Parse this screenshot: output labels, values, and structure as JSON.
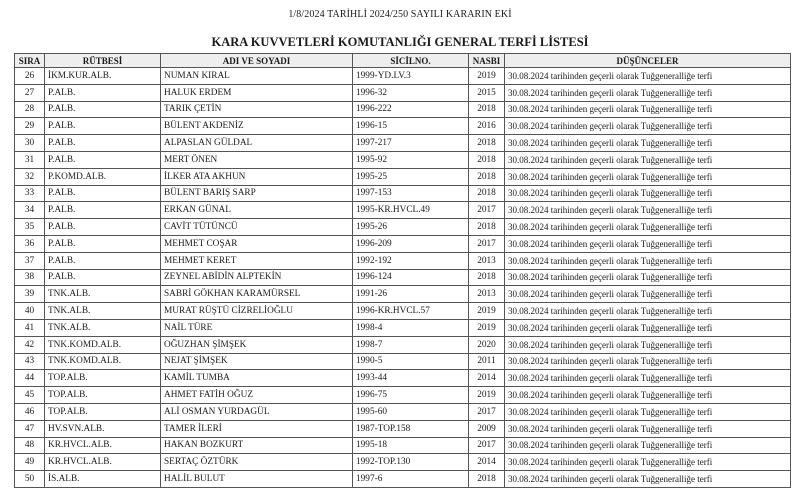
{
  "header": {
    "subtitle": "1/8/2024 TARİHLİ 2024/250 SAYILI KARARIN EKİ",
    "title": "KARA KUVVETLERİ KOMUTANLIĞI GENERAL TERFİ LİSTESİ"
  },
  "table": {
    "columns": [
      "SIRA",
      "RÜTBESİ",
      "ADI VE SOYADI",
      "SİCİLNO.",
      "NASBI",
      "DÜŞÜNCELER"
    ],
    "rows": [
      [
        "26",
        "İKM.KUR.ALB.",
        "NUMAN KIRAL",
        "1999-YD.LV.3",
        "2019",
        "30.08.2024 tarihinden geçerli olarak Tuğgeneralliğe terfi"
      ],
      [
        "27",
        "P.ALB.",
        "HALUK ERDEM",
        "1996-32",
        "2015",
        "30.08.2024 tarihinden geçerli olarak Tuğgeneralliğe terfi"
      ],
      [
        "28",
        "P.ALB.",
        "TARIK ÇETİN",
        "1996-222",
        "2018",
        "30.08.2024 tarihinden geçerli olarak Tuğgeneralliğe terfi"
      ],
      [
        "29",
        "P.ALB.",
        "BÜLENT AKDENİZ",
        "1996-15",
        "2016",
        "30.08.2024 tarihinden geçerli olarak Tuğgeneralliğe terfi"
      ],
      [
        "30",
        "P.ALB.",
        "ALPASLAN GÜLDAL",
        "1997-217",
        "2018",
        "30.08.2024 tarihinden geçerli olarak Tuğgeneralliğe terfi"
      ],
      [
        "31",
        "P.ALB.",
        "MERT ÖNEN",
        "1995-92",
        "2018",
        "30.08.2024 tarihinden geçerli olarak Tuğgeneralliğe terfi"
      ],
      [
        "32",
        "P.KOMD.ALB.",
        "İLKER ATA AKHUN",
        "1995-25",
        "2018",
        "30.08.2024 tarihinden geçerli olarak Tuğgeneralliğe terfi"
      ],
      [
        "33",
        "P.ALB.",
        "BÜLENT BARIŞ SARP",
        "1997-153",
        "2018",
        "30.08.2024 tarihinden geçerli olarak Tuğgeneralliğe terfi"
      ],
      [
        "34",
        "P.ALB.",
        "ERKAN GÜNAL",
        "1995-KR.HVCL.49",
        "2017",
        "30.08.2024 tarihinden geçerli olarak Tuğgeneralliğe terfi"
      ],
      [
        "35",
        "P.ALB.",
        "CAVİT TÜTÜNCÜ",
        "1995-26",
        "2018",
        "30.08.2024 tarihinden geçerli olarak Tuğgeneralliğe terfi"
      ],
      [
        "36",
        "P.ALB.",
        "MEHMET COŞAR",
        "1996-209",
        "2017",
        "30.08.2024 tarihinden geçerli olarak Tuğgeneralliğe terfi"
      ],
      [
        "37",
        "P.ALB.",
        "MEHMET KERET",
        "1992-192",
        "2013",
        "30.08.2024 tarihinden geçerli olarak Tuğgeneralliğe terfi"
      ],
      [
        "38",
        "P.ALB.",
        "ZEYNEL ABİDİN ALPTEKİN",
        "1996-124",
        "2018",
        "30.08.2024 tarihinden geçerli olarak Tuğgeneralliğe terfi"
      ],
      [
        "39",
        "TNK.ALB.",
        "SABRİ GÖKHAN KARAMÜRSEL",
        "1991-26",
        "2013",
        "30.08.2024 tarihinden geçerli olarak Tuğgeneralliğe terfi"
      ],
      [
        "40",
        "TNK.ALB.",
        "MURAT RÜŞTÜ CİZRELİOĞLU",
        "1996-KR.HVCL.57",
        "2019",
        "30.08.2024 tarihinden geçerli olarak Tuğgeneralliğe terfi"
      ],
      [
        "41",
        "TNK.ALB.",
        "NAİL TÜRE",
        "1998-4",
        "2019",
        "30.08.2024 tarihinden geçerli olarak Tuğgeneralliğe terfi"
      ],
      [
        "42",
        "TNK.KOMD.ALB.",
        "OĞUZHAN ŞİMŞEK",
        "1998-7",
        "2020",
        "30.08.2024 tarihinden geçerli olarak Tuğgeneralliğe terfi"
      ],
      [
        "43",
        "TNK.KOMD.ALB.",
        "NEJAT ŞİMŞEK",
        "1990-5",
        "2011",
        "30.08.2024 tarihinden geçerli olarak Tuğgeneralliğe terfi"
      ],
      [
        "44",
        "TOP.ALB.",
        "KAMİL TUMBA",
        "1993-44",
        "2014",
        "30.08.2024 tarihinden geçerli olarak Tuğgeneralliğe terfi"
      ],
      [
        "45",
        "TOP.ALB.",
        "AHMET FATİH OĞUZ",
        "1996-75",
        "2019",
        "30.08.2024 tarihinden geçerli olarak Tuğgeneralliğe terfi"
      ],
      [
        "46",
        "TOP.ALB.",
        "ALİ OSMAN YURDAGÜL",
        "1995-60",
        "2017",
        "30.08.2024 tarihinden geçerli olarak Tuğgeneralliğe terfi"
      ],
      [
        "47",
        "HV.SVN.ALB.",
        "TAMER İLERİ",
        "1987-TOP.158",
        "2009",
        "30.08.2024 tarihinden geçerli olarak Tuğgeneralliğe terfi"
      ],
      [
        "48",
        "KR.HVCL.ALB.",
        "HAKAN BOZKURT",
        "1995-18",
        "2017",
        "30.08.2024 tarihinden geçerli olarak Tuğgeneralliğe terfi"
      ],
      [
        "49",
        "KR.HVCL.ALB.",
        "SERTAÇ ÖZTÜRK",
        "1992-TOP.130",
        "2014",
        "30.08.2024 tarihinden geçerli olarak Tuğgeneralliğe terfi"
      ],
      [
        "50",
        "İS.ALB.",
        "HALİL BULUT",
        "1997-6",
        "2018",
        "30.08.2024 tarihinden geçerli olarak Tuğgeneralliğe terfi"
      ]
    ]
  }
}
